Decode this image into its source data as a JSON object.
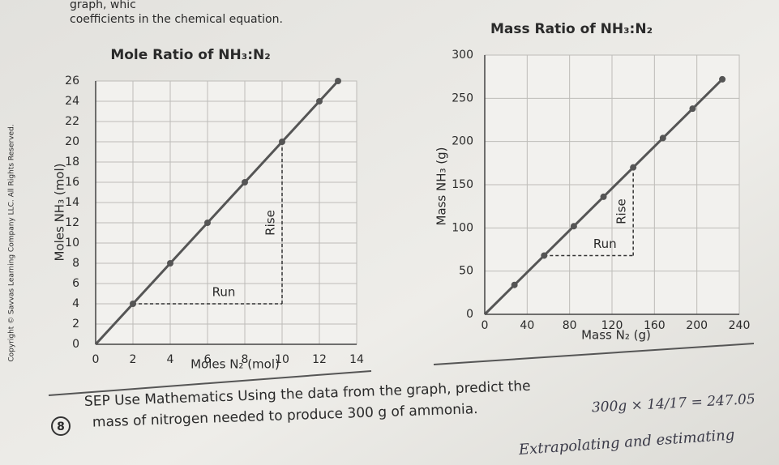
{
  "header": {
    "line1": "graph, whic",
    "line2": "coefficients in the chemical equation."
  },
  "copyright": "Copyright © Savvas Learning Company LLC. All Rights Reserved.",
  "chart_data": [
    {
      "type": "line",
      "title": "Mole Ratio of NH₃:N₂",
      "x_label": "Moles N₂ (mol)",
      "y_label": "Moles NH₃ (mol)",
      "x": [
        0,
        2,
        4,
        6,
        8,
        10,
        12,
        13
      ],
      "values": [
        0,
        4,
        8,
        12,
        16,
        20,
        24,
        26
      ],
      "color": "#555555",
      "xlim": [
        0,
        14
      ],
      "xticks": [
        0,
        2,
        4,
        6,
        8,
        10,
        12,
        14
      ],
      "ylim": [
        0,
        26
      ],
      "yticks": [
        0,
        2,
        4,
        6,
        8,
        10,
        12,
        14,
        16,
        18,
        20,
        22,
        24,
        26
      ],
      "grid": true,
      "annotations": [
        "Run",
        "Rise"
      ]
    },
    {
      "type": "line",
      "title": "Mass Ratio of NH₃:N₂",
      "x_label": "Mass N₂ (g)",
      "y_label": "Mass NH₃ (g)",
      "x": [
        0,
        28,
        56,
        84,
        112,
        140,
        168,
        196,
        224
      ],
      "values": [
        0,
        34,
        68,
        102,
        136,
        170,
        204,
        238,
        272
      ],
      "color": "#555555",
      "xlim": [
        0,
        240
      ],
      "xticks": [
        0,
        40,
        80,
        120,
        160,
        200,
        240
      ],
      "ylim": [
        0,
        300
      ],
      "yticks": [
        0,
        50,
        100,
        150,
        200,
        250,
        300
      ],
      "grid": true,
      "annotations": [
        "Run",
        "Rise"
      ]
    }
  ],
  "question": {
    "number": "8",
    "line1": "SEP Use Mathematics Using the data from the graph, predict the",
    "line2": "mass of nitrogen needed to produce 300 g of ammonia."
  },
  "handwriting": {
    "calc": "300g × 14/17 = 247.05",
    "note": "Extrapolating and estimating"
  }
}
